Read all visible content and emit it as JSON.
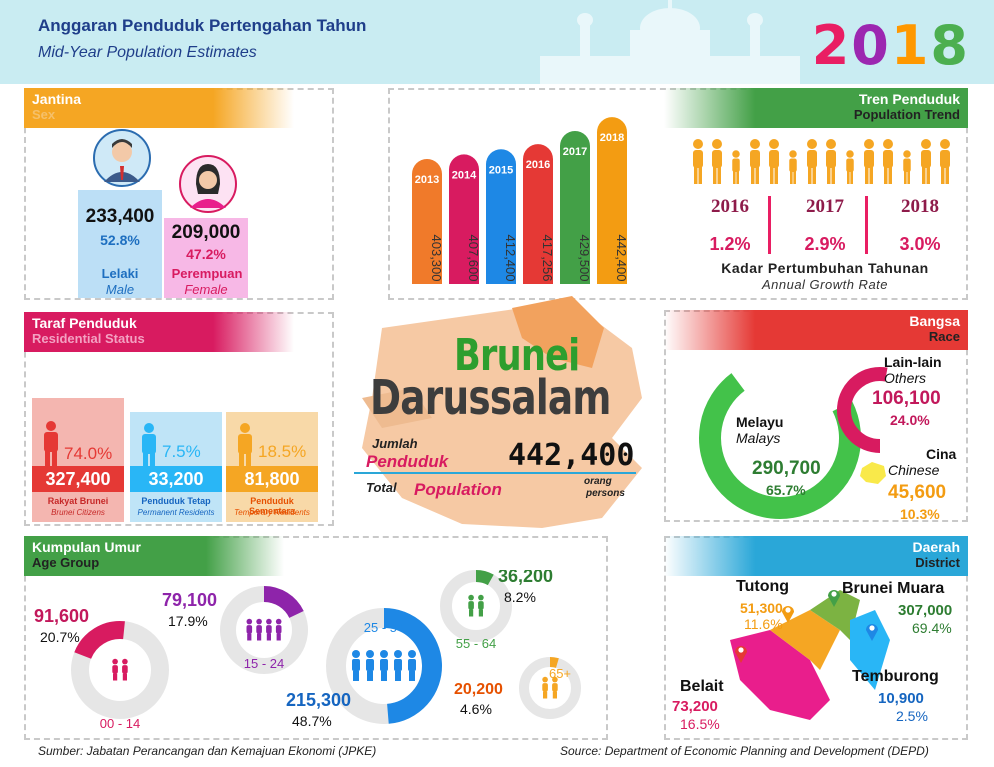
{
  "header": {
    "title_ms": "Anggaran Penduduk Pertengahan Tahun",
    "title_en": "Mid-Year Population Estimates",
    "year": "2018",
    "year_colors": [
      "#e91e63",
      "#9c27b0",
      "#ff9800",
      "#4caf50"
    ]
  },
  "sex": {
    "title_ms": "Jantina",
    "title_en": "Sex",
    "male": {
      "count": "233,400",
      "pct": "52.8%",
      "label_ms": "Lelaki",
      "label_en": "Male",
      "icon": "man-avatar-icon"
    },
    "female": {
      "count": "209,000",
      "pct": "47.2%",
      "label_ms": "Perempuan",
      "label_en": "Female",
      "icon": "woman-avatar-icon"
    }
  },
  "trend": {
    "title_ms": "Tren Penduduk",
    "title_en": "Population Trend",
    "chart_data": {
      "type": "bar",
      "categories": [
        "2013",
        "2014",
        "2015",
        "2016",
        "2017",
        "2018"
      ],
      "values": [
        403300,
        407600,
        412400,
        417256,
        429500,
        442400
      ],
      "value_labels": [
        "403,300",
        "407,600",
        "412,400",
        "417,256",
        "429,500",
        "442,400"
      ],
      "colors": [
        "#f07a2a",
        "#d81b60",
        "#1e88e5",
        "#e53935",
        "#43a047",
        "#f39c12"
      ]
    },
    "growth": [
      {
        "year": "2016",
        "rate": "1.2%"
      },
      {
        "year": "2017",
        "rate": "2.9%"
      },
      {
        "year": "2018",
        "rate": "3.0%"
      }
    ],
    "growth_label_ms": "Kadar Pertumbuhan Tahunan",
    "growth_label_en": "Annual Growth Rate"
  },
  "center": {
    "country_line1": "Brunei",
    "country_line2": "Darussalam",
    "total_label_ms_1": "Jumlah",
    "total_label_ms_2": "Penduduk",
    "total_label_en_1": "Total",
    "total_label_en_2": "Population",
    "total_value": "442,400",
    "unit_ms": "orang",
    "unit_en": "persons"
  },
  "residential": {
    "title_ms": "Taraf Penduduk",
    "title_en": "Residential Status",
    "items": [
      {
        "pct": "74.0%",
        "count": "327,400",
        "label_ms": "Rakyat Brunei",
        "label_en": "Brunei Citizens",
        "color": "#e53935"
      },
      {
        "pct": "7.5%",
        "count": "33,200",
        "label_ms": "Penduduk Tetap",
        "label_en": "Permanent Residents",
        "color": "#29b6f6"
      },
      {
        "pct": "18.5%",
        "count": "81,800",
        "label_ms": "Penduduk Sementara",
        "label_en": "Temporary Residents",
        "color": "#f5a623"
      }
    ]
  },
  "race": {
    "title_ms": "Bangsa",
    "title_en": "Race",
    "malay": {
      "label_ms": "Melayu",
      "label_en": "Malays",
      "count": "290,700",
      "pct": "65.7%",
      "share": 0.657
    },
    "others": {
      "label_ms": "Lain-lain",
      "label_en": "Others",
      "count": "106,100",
      "pct": "24.0%",
      "share": 0.24
    },
    "chinese": {
      "label_ms": "Cina",
      "label_en": "Chinese",
      "count": "45,600",
      "pct": "10.3%",
      "share": 0.103
    }
  },
  "age": {
    "title_ms": "Kumpulan Umur",
    "title_en": "Age Group",
    "groups": [
      {
        "range": "00 - 14",
        "count": "91,600",
        "pct": "20.7%",
        "share": 0.207,
        "color": "#d81b60",
        "count_color": "#c2185b"
      },
      {
        "range": "15 - 24",
        "count": "79,100",
        "pct": "17.9%",
        "share": 0.179,
        "color": "#8e24aa",
        "count_color": "#8e24aa"
      },
      {
        "range": "25 - 54",
        "count": "215,300",
        "pct": "48.7%",
        "share": 0.487,
        "color": "#1e88e5",
        "count_color": "#1565c0"
      },
      {
        "range": "55 - 64",
        "count": "36,200",
        "pct": "8.2%",
        "share": 0.082,
        "color": "#43a047",
        "count_color": "#2e7d32"
      },
      {
        "range": "65+",
        "count": "20,200",
        "pct": "4.6%",
        "share": 0.046,
        "color": "#f5a623",
        "count_color": "#e65100"
      }
    ]
  },
  "district": {
    "title_ms": "Daerah",
    "title_en": "District",
    "items": [
      {
        "name": "Tutong",
        "count": "51,300",
        "pct": "11.6%"
      },
      {
        "name": "Brunei Muara",
        "count": "307,000",
        "pct": "69.4%"
      },
      {
        "name": "Temburong",
        "count": "10,900",
        "pct": "2.5%"
      },
      {
        "name": "Belait",
        "count": "73,200",
        "pct": "16.5%"
      }
    ]
  },
  "footer": {
    "source_ms": "Sumber: Jabatan Perancangan dan Kemajuan Ekonomi (JPKE)",
    "source_en": "Source: Department of Economic Planning and Development (DEPD)"
  }
}
